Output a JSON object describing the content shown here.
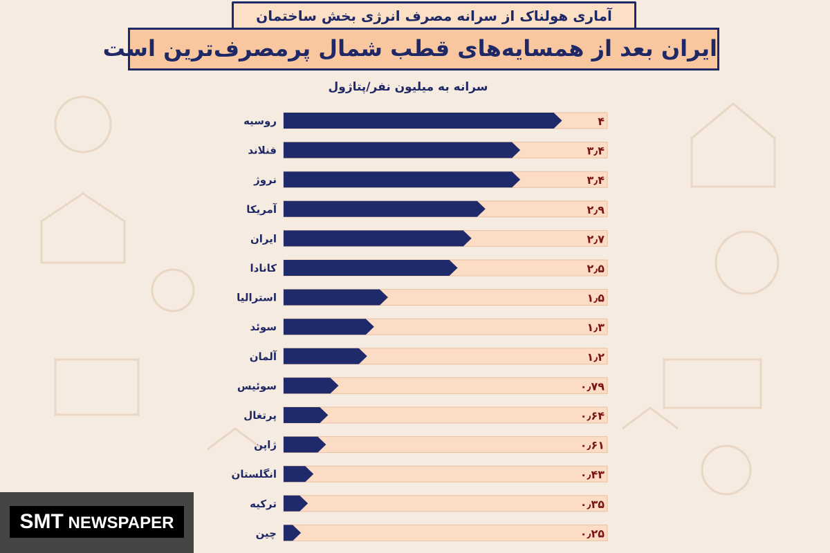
{
  "header": {
    "subtitle": "آماری هولناک از سرانه مصرف انرژی بخش ساختمان",
    "title": "ایران بعد از همسایه‌های قطب شمال پرمصرف‌ترین است"
  },
  "logo": {
    "part1": "SMT",
    "part2": "NEWSPAPER"
  },
  "colors": {
    "bar": "#1f2a6b",
    "track": "#fcdcc4",
    "background": "#f6ebe0",
    "value": "#7a1418"
  },
  "chart_data": {
    "type": "bar",
    "orientation": "horizontal",
    "unit_label": "سرانه به میلیون نفر/پتاژول",
    "categories": [
      "روسیه",
      "فنلاند",
      "نروژ",
      "آمریکا",
      "ایران",
      "کانادا",
      "استرالیا",
      "سوئد",
      "آلمان",
      "سوئیس",
      "پرتغال",
      "ژاپن",
      "انگلستان",
      "ترکیه",
      "چین"
    ],
    "values": [
      4,
      3.4,
      3.4,
      2.9,
      2.7,
      2.5,
      1.5,
      1.3,
      1.2,
      0.79,
      0.64,
      0.61,
      0.43,
      0.35,
      0.25
    ],
    "value_labels": [
      "۴",
      "۳٫۴",
      "۳٫۴",
      "۲٫۹",
      "۲٫۷",
      "۲٫۵",
      "۱٫۵",
      "۱٫۳",
      "۱٫۲",
      "۰٫۷۹",
      "۰٫۶۴",
      "۰٫۶۱",
      "۰٫۴۳",
      "۰٫۳۵",
      "۰٫۲۵"
    ],
    "xlim": [
      0,
      4.65
    ],
    "grid": false
  }
}
